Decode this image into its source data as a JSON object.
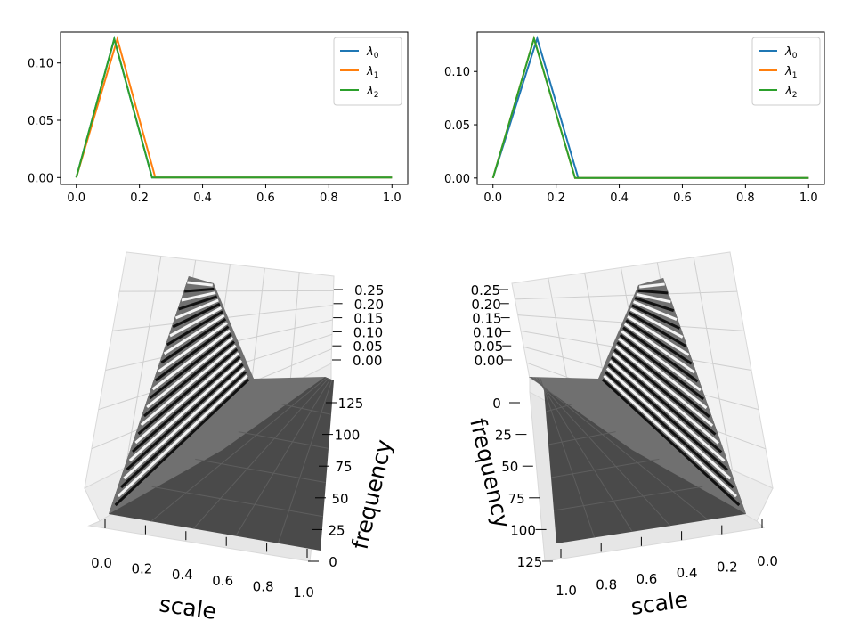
{
  "chart_data": [
    {
      "type": "line",
      "title": "",
      "xlabel": "",
      "ylabel": "",
      "xlim": [
        -0.05,
        1.05
      ],
      "ylim": [
        -0.006,
        0.127
      ],
      "xticks": [
        "0.0",
        "0.2",
        "0.4",
        "0.6",
        "0.8",
        "1.0"
      ],
      "yticks": [
        "0.00",
        "0.05",
        "0.10"
      ],
      "legend_position": "top-right",
      "series": [
        {
          "name": "λ0",
          "subscript": "0",
          "color": "#1f77b4",
          "x": [
            0.0,
            0.12,
            0.24,
            1.0
          ],
          "y": [
            0.0,
            0.121,
            0.0,
            0.0
          ]
        },
        {
          "name": "λ1",
          "subscript": "1",
          "color": "#ff7f0e",
          "x": [
            0.0,
            0.13,
            0.25,
            1.0
          ],
          "y": [
            0.0,
            0.121,
            0.0,
            0.0
          ]
        },
        {
          "name": "λ2",
          "subscript": "2",
          "color": "#2ca02c",
          "x": [
            0.0,
            0.12,
            0.24,
            1.0
          ],
          "y": [
            0.0,
            0.121,
            0.0,
            0.0
          ]
        }
      ]
    },
    {
      "type": "line",
      "title": "",
      "xlabel": "",
      "ylabel": "",
      "xlim": [
        -0.05,
        1.05
      ],
      "ylim": [
        -0.006,
        0.137
      ],
      "xticks": [
        "0.0",
        "0.2",
        "0.4",
        "0.6",
        "0.8",
        "1.0"
      ],
      "yticks": [
        "0.00",
        "0.05",
        "0.10"
      ],
      "legend_position": "top-right",
      "series": [
        {
          "name": "λ0",
          "subscript": "0",
          "color": "#1f77b4",
          "x": [
            0.0,
            0.14,
            0.27,
            1.0
          ],
          "y": [
            0.0,
            0.131,
            0.0,
            0.0
          ]
        },
        {
          "name": "λ1",
          "subscript": "1",
          "color": "#ff7f0e",
          "x": [
            0.0,
            0.13,
            0.26,
            1.0
          ],
          "y": [
            0.0,
            0.131,
            0.0,
            0.0
          ]
        },
        {
          "name": "λ2",
          "subscript": "2",
          "color": "#2ca02c",
          "x": [
            0.0,
            0.13,
            0.26,
            1.0
          ],
          "y": [
            0.0,
            0.131,
            0.0,
            0.0
          ]
        }
      ]
    },
    {
      "type": "surface",
      "xlabel": "scale",
      "ylabel": "frequency",
      "zlabel": "",
      "xticks": [
        "0.0",
        "0.2",
        "0.4",
        "0.6",
        "0.8",
        "1.0"
      ],
      "yticks": [
        "0",
        "25",
        "50",
        "75",
        "100",
        "125"
      ],
      "zticks": [
        "0.00",
        "0.05",
        "0.10",
        "0.15",
        "0.20",
        "0.25"
      ],
      "view": "scale increasing left-to-right, frequency increasing bottom-to-top",
      "peak_scale": 0.12,
      "support_scale": 0.25
    },
    {
      "type": "surface",
      "xlabel": "scale",
      "ylabel": "frequency",
      "zlabel": "",
      "xticks": [
        "1.0",
        "0.8",
        "0.6",
        "0.4",
        "0.2",
        "0.0"
      ],
      "yticks": [
        "0",
        "25",
        "50",
        "75",
        "100",
        "125"
      ],
      "zticks": [
        "0.00",
        "0.05",
        "0.10",
        "0.15",
        "0.20",
        "0.25"
      ],
      "view": "scale increasing right-to-left, frequency increasing top-to-bottom",
      "peak_scale": 0.13,
      "support_scale": 0.26
    }
  ]
}
